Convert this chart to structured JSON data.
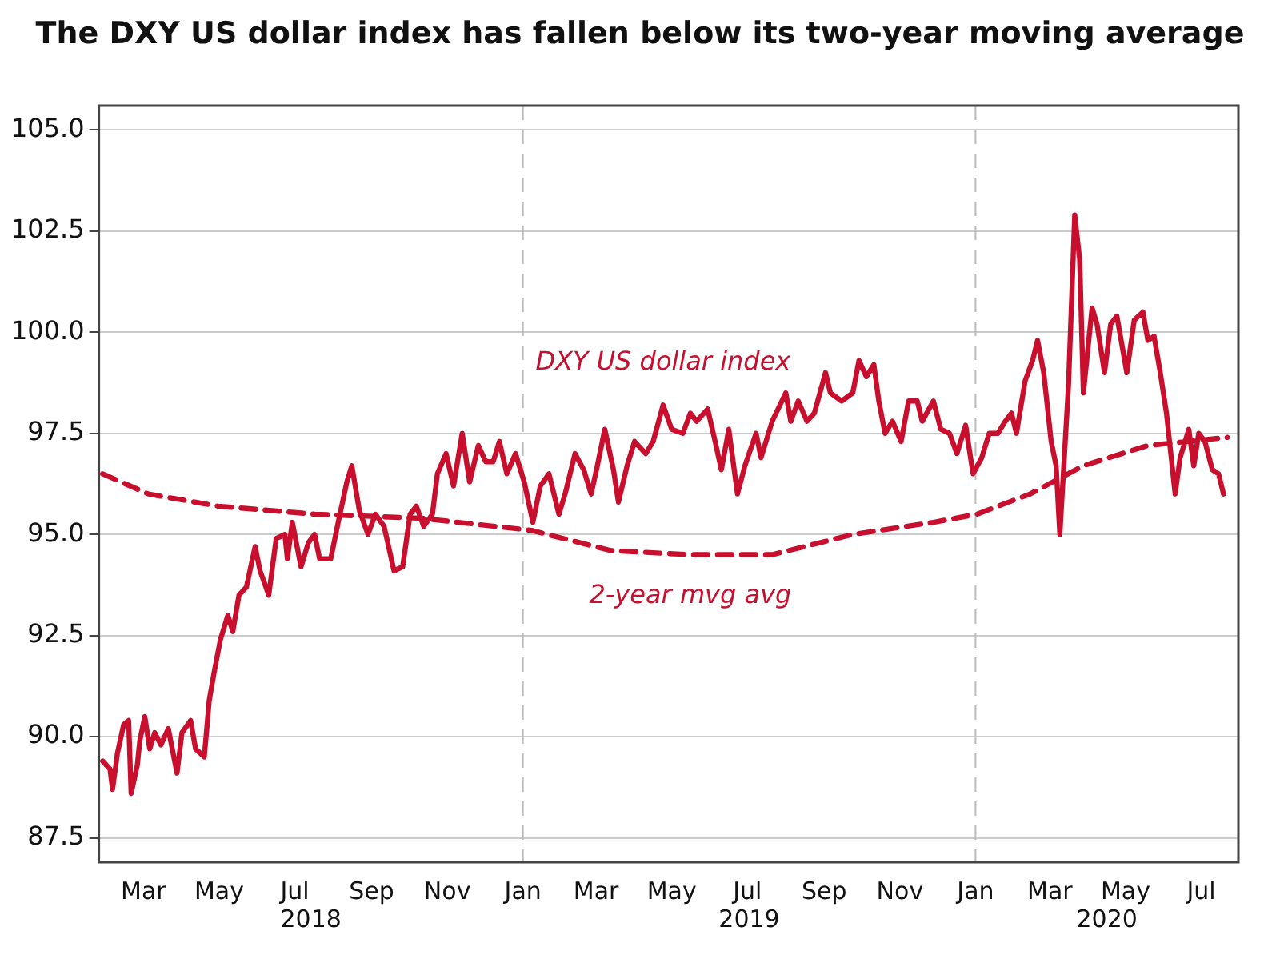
{
  "chart_data": {
    "type": "line",
    "title": "The DXY US dollar index has fallen below its two-year moving average",
    "xlim": [
      "2018-01-24",
      "2020-07-31"
    ],
    "xticks": [
      {
        "value": "2018-03-01",
        "label": "Mar"
      },
      {
        "value": "2018-05-01",
        "label": "May"
      },
      {
        "value": "2018-07-01",
        "label": "Jul"
      },
      {
        "value": "2018-09-01",
        "label": "Sep"
      },
      {
        "value": "2018-11-01",
        "label": "Nov"
      },
      {
        "value": "2019-01-01",
        "label": "Jan"
      },
      {
        "value": "2019-03-01",
        "label": "Mar"
      },
      {
        "value": "2019-05-01",
        "label": "May"
      },
      {
        "value": "2019-07-01",
        "label": "Jul"
      },
      {
        "value": "2019-09-01",
        "label": "Sep"
      },
      {
        "value": "2019-11-01",
        "label": "Nov"
      },
      {
        "value": "2020-01-01",
        "label": "Jan"
      },
      {
        "value": "2020-03-01",
        "label": "Mar"
      },
      {
        "value": "2020-05-01",
        "label": "May"
      },
      {
        "value": "2020-07-01",
        "label": "Jul"
      }
    ],
    "ylim": [
      86.9,
      105.6
    ],
    "yticks": [
      {
        "value": 87.5,
        "label": "87.5"
      },
      {
        "value": 90,
        "label": "90.0"
      },
      {
        "value": 92.5,
        "label": "92.5"
      },
      {
        "value": 95,
        "label": "95.0"
      },
      {
        "value": 97.5,
        "label": "97.5"
      },
      {
        "value": 100,
        "label": "100.0"
      },
      {
        "value": 102.5,
        "label": "102.5"
      },
      {
        "value": 105,
        "label": "105.0"
      }
    ],
    "grid": "y",
    "legend": false,
    "annotations": [
      "2018",
      "2019",
      "2020"
    ],
    "ref_lines": [
      {
        "axis": "x",
        "value": "2019-01-01",
        "color": "#bbbbbb",
        "line_style": "dashed"
      },
      {
        "axis": "x",
        "value": "2020-01-01",
        "color": "#bbbbbb",
        "line_style": "dashed"
      }
    ],
    "series": [
      {
        "name": "DXY US dollar index",
        "color": "#c8102e",
        "line_style": "solid",
        "x": [
          "2018-01-27",
          "2018-02-02",
          "2018-02-04",
          "2018-02-08",
          "2018-02-13",
          "2018-02-17",
          "2018-02-19",
          "2018-02-24",
          "2018-02-26",
          "2018-03-02",
          "2018-03-06",
          "2018-03-10",
          "2018-03-15",
          "2018-03-21",
          "2018-03-28",
          "2018-04-01",
          "2018-04-08",
          "2018-04-12",
          "2018-04-19",
          "2018-04-23",
          "2018-04-27",
          "2018-05-02",
          "2018-05-08",
          "2018-05-12",
          "2018-05-17",
          "2018-05-23",
          "2018-05-30",
          "2018-06-03",
          "2018-06-10",
          "2018-06-16",
          "2018-06-23",
          "2018-06-25",
          "2018-06-29",
          "2018-07-06",
          "2018-07-12",
          "2018-07-17",
          "2018-07-21",
          "2018-07-30",
          "2018-08-05",
          "2018-08-12",
          "2018-08-16",
          "2018-08-22",
          "2018-08-29",
          "2018-09-04",
          "2018-09-11",
          "2018-09-19",
          "2018-09-26",
          "2018-10-02",
          "2018-10-07",
          "2018-10-13",
          "2018-10-20",
          "2018-10-24",
          "2018-10-31",
          "2018-11-06",
          "2018-11-13",
          "2018-11-19",
          "2018-11-26",
          "2018-12-02",
          "2018-12-08",
          "2018-12-13",
          "2018-12-19",
          "2018-12-26",
          "2019-01-02",
          "2019-01-09",
          "2019-01-15",
          "2019-01-22",
          "2019-01-26",
          "2019-01-30",
          "2019-02-04",
          "2019-02-12",
          "2019-02-19",
          "2019-02-25",
          "2019-03-02",
          "2019-03-08",
          "2019-03-15",
          "2019-03-19",
          "2019-03-26",
          "2019-04-01",
          "2019-04-10",
          "2019-04-16",
          "2019-04-24",
          "2019-05-01",
          "2019-05-10",
          "2019-05-16",
          "2019-05-21",
          "2019-05-30",
          "2019-06-05",
          "2019-06-10",
          "2019-06-16",
          "2019-06-23",
          "2019-06-29",
          "2019-07-08",
          "2019-07-12",
          "2019-07-21",
          "2019-08-01",
          "2019-08-05",
          "2019-08-11",
          "2019-08-18",
          "2019-08-24",
          "2019-09-02",
          "2019-09-06",
          "2019-09-15",
          "2019-09-24",
          "2019-09-29",
          "2019-10-05",
          "2019-10-11",
          "2019-10-15",
          "2019-10-20",
          "2019-10-26",
          "2019-11-02",
          "2019-11-08",
          "2019-11-15",
          "2019-11-19",
          "2019-11-28",
          "2019-12-04",
          "2019-12-11",
          "2019-12-17",
          "2019-12-24",
          "2019-12-30",
          "2020-01-06",
          "2020-01-12",
          "2020-01-19",
          "2020-01-25",
          "2020-01-30",
          "2020-02-03",
          "2020-02-10",
          "2020-02-16",
          "2020-02-20",
          "2020-02-25",
          "2020-03-02",
          "2020-03-06",
          "2020-03-09",
          "2020-03-16",
          "2020-03-21",
          "2020-03-25",
          "2020-03-28",
          "2020-04-04",
          "2020-04-08",
          "2020-04-14",
          "2020-04-19",
          "2020-04-24",
          "2020-05-02",
          "2020-05-08",
          "2020-05-15",
          "2020-05-19",
          "2020-05-24",
          "2020-05-29",
          "2020-06-03",
          "2020-06-10",
          "2020-06-14",
          "2020-06-21",
          "2020-06-25",
          "2020-06-29",
          "2020-07-04",
          "2020-07-10",
          "2020-07-15",
          "2020-07-19"
        ],
        "values": [
          89.4,
          89.2,
          88.7,
          89.6,
          90.3,
          90.4,
          88.6,
          89.3,
          89.9,
          90.5,
          89.7,
          90.1,
          89.8,
          90.2,
          89.1,
          90.1,
          90.4,
          89.7,
          89.5,
          90.9,
          91.6,
          92.4,
          93.0,
          92.6,
          93.5,
          93.7,
          94.7,
          94.1,
          93.5,
          94.9,
          95.0,
          94.4,
          95.3,
          94.2,
          94.8,
          95.0,
          94.4,
          94.4,
          95.3,
          96.3,
          96.7,
          95.6,
          95.0,
          95.5,
          95.2,
          94.1,
          94.2,
          95.5,
          95.7,
          95.2,
          95.5,
          96.5,
          97.0,
          96.2,
          97.5,
          96.3,
          97.2,
          96.8,
          96.8,
          97.3,
          96.5,
          97.0,
          96.3,
          95.3,
          96.2,
          96.5,
          96.0,
          95.5,
          96.0,
          97.0,
          96.6,
          96.0,
          96.7,
          97.6,
          96.6,
          95.8,
          96.7,
          97.3,
          97.0,
          97.3,
          98.2,
          97.6,
          97.5,
          98.0,
          97.8,
          98.1,
          97.3,
          96.6,
          97.6,
          96.0,
          96.7,
          97.5,
          96.9,
          97.8,
          98.5,
          97.8,
          98.3,
          97.8,
          98.0,
          99.0,
          98.5,
          98.3,
          98.5,
          99.3,
          98.9,
          99.2,
          98.3,
          97.5,
          97.8,
          97.3,
          98.3,
          98.3,
          97.8,
          98.3,
          97.6,
          97.5,
          97.0,
          97.7,
          96.5,
          96.9,
          97.5,
          97.5,
          97.8,
          98.0,
          97.5,
          98.8,
          99.3,
          99.8,
          99.0,
          97.3,
          96.7,
          95.0,
          98.7,
          102.9,
          101.8,
          98.5,
          100.6,
          100.2,
          99.0,
          100.2,
          100.4,
          99.0,
          100.3,
          100.5,
          99.8,
          99.9,
          99.0,
          98.0,
          96.0,
          96.9,
          97.6,
          96.7,
          97.5,
          97.3,
          96.6,
          96.5,
          96.0
        ]
      },
      {
        "name": "2-year mvg avg",
        "color": "#c8102e",
        "line_style": "dashed",
        "x": [
          "2018-01-27",
          "2018-03-05",
          "2018-04-30",
          "2018-07-17",
          "2018-10-11",
          "2019-01-08",
          "2019-03-13",
          "2019-05-16",
          "2019-07-21",
          "2019-09-24",
          "2019-11-28",
          "2020-01-02",
          "2020-02-14",
          "2020-03-28",
          "2020-05-19",
          "2020-07-22"
        ],
        "values": [
          96.5,
          96.0,
          95.7,
          95.5,
          95.4,
          95.1,
          94.6,
          94.5,
          94.5,
          95.0,
          95.3,
          95.5,
          96.0,
          96.7,
          97.2,
          97.4
        ]
      }
    ]
  }
}
